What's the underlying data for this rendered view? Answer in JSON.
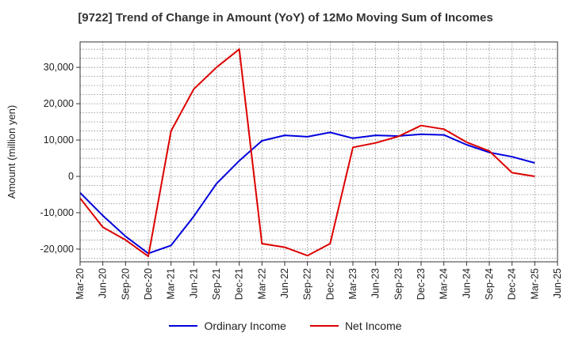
{
  "chart_data": {
    "type": "line",
    "title": "[9722]  Trend of Change in Amount (YoY) of 12Mo Moving Sum of Incomes",
    "xlabel": "",
    "ylabel": "Amount (million yen)",
    "categories": [
      "Mar-20",
      "Jun-20",
      "Sep-20",
      "Dec-20",
      "Mar-21",
      "Jun-21",
      "Sep-21",
      "Dec-21",
      "Mar-22",
      "Jun-22",
      "Sep-22",
      "Dec-22",
      "Mar-23",
      "Jun-23",
      "Sep-23",
      "Dec-23",
      "Mar-24",
      "Jun-24",
      "Sep-24",
      "Dec-24",
      "Mar-25",
      "Jun-25"
    ],
    "ylim": [
      -23500,
      37000
    ],
    "yticks": [
      -20000,
      -10000,
      0,
      10000,
      20000,
      30000
    ],
    "ytick_labels": [
      "-20,000",
      "-10,000",
      "0",
      "10,000",
      "20,000",
      "30,000"
    ],
    "grid": true,
    "legend_position": "bottom",
    "series": [
      {
        "name": "Ordinary Income",
        "color": "#0000dd",
        "values": [
          -4500,
          -10800,
          -16500,
          -21200,
          -19000,
          -11000,
          -2000,
          4300,
          9800,
          11300,
          10900,
          12100,
          10500,
          11300,
          11100,
          11600,
          11400,
          8700,
          6600,
          5400,
          3700,
          null
        ]
      },
      {
        "name": "Net Income",
        "color": "#dd0000",
        "values": [
          -6000,
          -14000,
          -17500,
          -22000,
          12500,
          24000,
          30000,
          35000,
          -18500,
          -19500,
          -21800,
          -18500,
          8000,
          9200,
          11000,
          14000,
          13000,
          9400,
          7000,
          1000,
          0,
          null
        ]
      }
    ]
  }
}
